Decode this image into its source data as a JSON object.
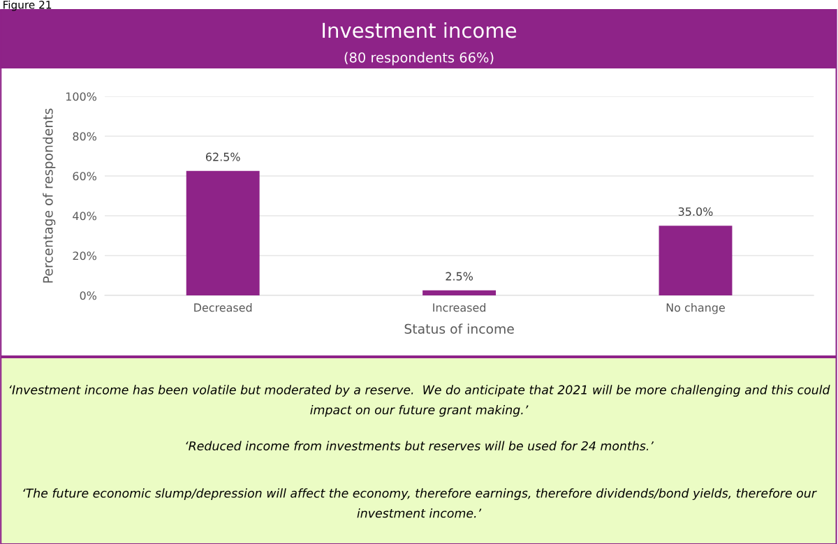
{
  "chart_data": {
    "type": "bar",
    "title": "Investment income",
    "subtitle": "(80 respondents 66%)",
    "xlabel": "Status of income",
    "ylabel": "Percentage of respondents",
    "categories": [
      "Decreased",
      "Increased",
      "No change"
    ],
    "values": [
      62.5,
      2.5,
      35.0
    ],
    "color": "#8e2388",
    "value_labels": [
      "62.5%",
      "2.5%",
      "35.0%"
    ],
    "ylim": [
      0,
      100
    ],
    "yticks": [
      {
        "value": 0,
        "label": "0%"
      },
      {
        "value": 20,
        "label": "20%"
      },
      {
        "value": 40,
        "label": "40%"
      },
      {
        "value": 60,
        "label": "60%"
      },
      {
        "value": 80,
        "label": "80%"
      },
      {
        "value": 100,
        "label": "100%"
      }
    ],
    "grid": "y",
    "annotations": [
      "Figure 21",
      "‘Investment income has been volatile but moderated by a reserve.  We do anticipate that 2021 will be more challenging and this could impact on our future grant making.’",
      "‘Reduced income from investments but reserves will be used for 24 months.’",
      "‘The future economic slump/depression will affect the economy, therefore earnings, therefore dividends/bond yields, therefore our investment income.’"
    ]
  }
}
